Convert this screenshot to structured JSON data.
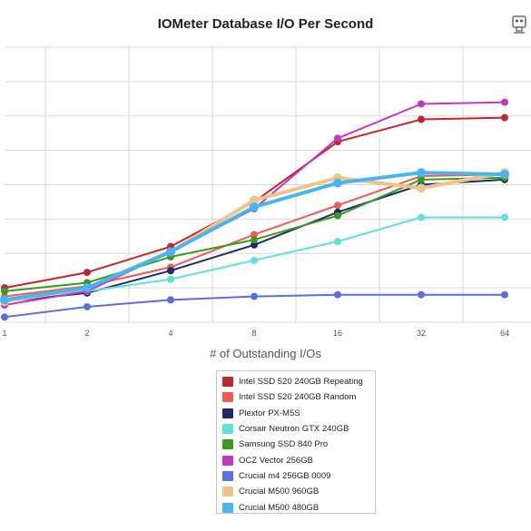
{
  "chart_data": {
    "type": "line",
    "title": "IOMeter Database I/O Per Second",
    "xlabel": "# of Outstanding I/Os",
    "ylabel": "",
    "x": [
      "1",
      "2",
      "4",
      "8",
      "16",
      "32",
      "64"
    ],
    "grid": true,
    "legend_position": "bottom",
    "series": [
      {
        "name": "Intel SSD 520 240GB Repeating",
        "color": "#c0262b",
        "values": [
          20,
          29,
          44,
          70,
          105,
          118,
          119
        ]
      },
      {
        "name": "Intel SSD 520 240GB Random",
        "color": "#ee5a55",
        "values": [
          15,
          21,
          32,
          51,
          68,
          85,
          86
        ]
      },
      {
        "name": "Plextor PX-M5S",
        "color": "#1c2a70",
        "values": [
          12,
          17,
          30,
          45,
          64,
          80,
          83
        ]
      },
      {
        "name": "Corsair Neutron GTX 240GB",
        "color": "#5fe0d8",
        "values": [
          13,
          18,
          25,
          36,
          47,
          61,
          61
        ]
      },
      {
        "name": "Samsung SSD 840 Pro",
        "color": "#3a9a1e",
        "values": [
          18,
          23,
          38,
          48,
          62,
          83,
          84
        ]
      },
      {
        "name": "OCZ Vector 256GB",
        "color": "#c636c2",
        "values": [
          10,
          18,
          41,
          66,
          107,
          127,
          128
        ]
      },
      {
        "name": "Crucial m4 256GB 0009",
        "color": "#5b6ee0",
        "values": [
          3,
          9,
          13,
          15,
          16,
          16,
          16
        ]
      },
      {
        "name": "Crucial M500 960GB",
        "color": "#f0c489",
        "values": [
          12,
          20,
          41,
          71,
          84,
          78,
          87
        ]
      },
      {
        "name": "Crucial M500 480GB",
        "color": "#47b6ee",
        "values": [
          13,
          20,
          41,
          67,
          81,
          87,
          86
        ]
      }
    ],
    "ylim": [
      0,
      160
    ]
  }
}
